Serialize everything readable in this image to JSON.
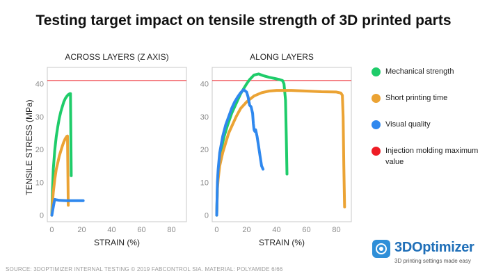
{
  "title": "Testing target impact on tensile strength of 3D printed parts",
  "ylabel": "TENSILE STRESS (MPa)",
  "source": "SOURCE: 3DOPTIMIZER INTERNAL TESTING © 2019 FABCONTROL SIA. MATERIAL: POLYAMIDE 6/66",
  "brand": {
    "name": "3DOptimizer",
    "tagline": "3D printing settings made easy",
    "color": "#2f8fd8"
  },
  "legend": [
    {
      "label": "Mechanical strength",
      "color": "#1fcc6a"
    },
    {
      "label": "Short printing time",
      "color": "#eba334"
    },
    {
      "label": "Visual quality",
      "color": "#2f88ee"
    },
    {
      "label": "Injection molding maximum value",
      "color": "#ee1c25"
    }
  ],
  "chart_data": [
    {
      "type": "line",
      "title": "ACROSS LAYERS (Z AXIS)",
      "xlabel": "STRAIN (%)",
      "ylabel": "TENSILE STRESS (MPa)",
      "xlim": [
        -3,
        90
      ],
      "ylim": [
        -2,
        45
      ],
      "xticks": [
        0,
        20,
        40,
        60,
        80
      ],
      "yticks": [
        0,
        10,
        20,
        30,
        40
      ],
      "grid": false,
      "reference_line": {
        "name": "Injection molding maximum value",
        "y": 41,
        "color": "#ee1c25"
      },
      "series": [
        {
          "name": "Mechanical strength",
          "color": "#1fcc6a",
          "x": [
            0,
            0.5,
            1,
            2,
            3,
            4,
            5,
            6,
            7,
            8,
            9,
            10,
            11,
            12,
            12.5,
            13
          ],
          "y": [
            0,
            8,
            14,
            20,
            24,
            27,
            29.5,
            31.5,
            33,
            34.5,
            35.5,
            36.2,
            36.7,
            37,
            37,
            12
          ]
        },
        {
          "name": "Short printing time",
          "color": "#eba334",
          "x": [
            0,
            0.5,
            1,
            2,
            3,
            4,
            5,
            6,
            7,
            8,
            9,
            10,
            10.5,
            11
          ],
          "y": [
            0,
            4,
            7,
            11,
            14,
            16,
            18,
            19.5,
            21,
            22.3,
            23.3,
            24,
            24.1,
            3
          ]
        },
        {
          "name": "Visual quality",
          "color": "#2f88ee",
          "x": [
            0,
            0.5,
            1,
            1.5,
            2,
            3,
            5,
            10,
            15,
            21
          ],
          "y": [
            0,
            1.2,
            2.5,
            3.8,
            4.8,
            4.7,
            4.5,
            4.4,
            4.4,
            4.4
          ]
        }
      ]
    },
    {
      "type": "line",
      "title": "ALONG LAYERS",
      "xlabel": "STRAIN (%)",
      "ylabel": "",
      "xlim": [
        -3,
        90
      ],
      "ylim": [
        -2,
        45
      ],
      "xticks": [
        0,
        20,
        40,
        60,
        80
      ],
      "yticks": [
        0,
        10,
        20,
        30,
        40
      ],
      "grid": false,
      "reference_line": {
        "name": "Injection molding maximum value",
        "y": 41,
        "color": "#ee1c25"
      },
      "series": [
        {
          "name": "Mechanical strength",
          "color": "#1fcc6a",
          "x": [
            0,
            0.5,
            1,
            2,
            3,
            5,
            7,
            10,
            13,
            16,
            18,
            20,
            22,
            25,
            28,
            31,
            35,
            40,
            42,
            44,
            45,
            46,
            46.5,
            47
          ],
          "y": [
            0,
            9,
            13,
            17,
            20,
            24,
            27,
            31,
            34,
            37,
            38.5,
            40,
            41.3,
            42.7,
            43,
            42.5,
            42,
            41.5,
            41.3,
            41,
            40,
            35,
            24,
            12.5
          ]
        },
        {
          "name": "Short printing time",
          "color": "#eba334",
          "x": [
            0,
            0.5,
            1,
            2,
            4,
            6,
            8,
            10,
            13,
            16,
            20,
            25,
            30,
            35,
            40,
            50,
            60,
            70,
            80,
            83,
            84,
            84.5,
            85,
            85.5
          ],
          "y": [
            0,
            8,
            11,
            15,
            19,
            22,
            25,
            27,
            30,
            32.5,
            34.5,
            36.3,
            37.3,
            37.8,
            38,
            38,
            37.8,
            37.6,
            37.5,
            37.2,
            36.5,
            30,
            15,
            2.5
          ]
        },
        {
          "name": "Visual quality",
          "color": "#2f88ee",
          "x": [
            0,
            0.5,
            1,
            2,
            4,
            6,
            8,
            10,
            12,
            14,
            16,
            18,
            20,
            21,
            22,
            23,
            24,
            24.5,
            25,
            25.5,
            26,
            27,
            28,
            29,
            30,
            31
          ],
          "y": [
            0,
            10,
            14,
            19,
            24,
            27.5,
            30,
            32.5,
            34.5,
            36,
            37.3,
            38.2,
            37.5,
            36,
            33.5,
            33,
            31,
            28,
            26,
            25.5,
            26,
            24,
            21,
            18,
            15,
            14
          ]
        }
      ]
    }
  ]
}
